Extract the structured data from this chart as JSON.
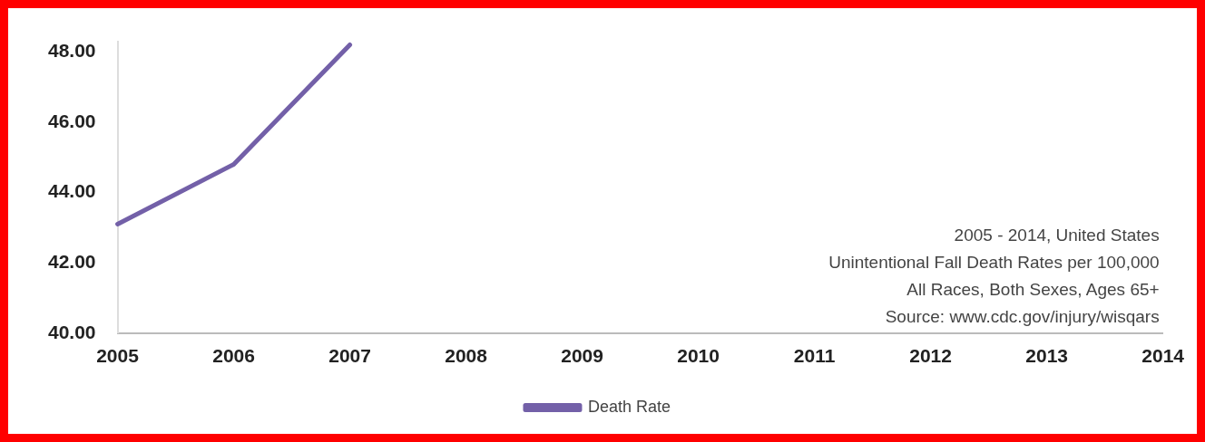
{
  "chart_data": {
    "type": "line",
    "categories": [
      "2005",
      "2006",
      "2007",
      "2008",
      "2009",
      "2010",
      "2011",
      "2012",
      "2013",
      "2014"
    ],
    "series": [
      {
        "name": "Death Rate",
        "color": "#7360a8",
        "values": [
          43.1,
          44.8,
          48.2,
          null,
          null,
          null,
          null,
          null,
          null,
          null
        ]
      }
    ],
    "ylim": [
      40,
      48.3
    ],
    "yticks": [
      {
        "value": 40,
        "label": "40.00"
      },
      {
        "value": 42,
        "label": "42.00"
      },
      {
        "value": 44,
        "label": "44.00"
      },
      {
        "value": 46,
        "label": "46.00"
      },
      {
        "value": 48,
        "label": "48.00"
      }
    ],
    "grid": false,
    "legend": "bottom",
    "marker": "none",
    "line_style": "solid",
    "annotations": [
      "2005 - 2014, United States",
      "Unintentional Fall Death Rates per 100,000",
      "All Races, Both Sexes, Ages 65+",
      "Source: www.cdc.gov/injury/wisqars"
    ]
  }
}
